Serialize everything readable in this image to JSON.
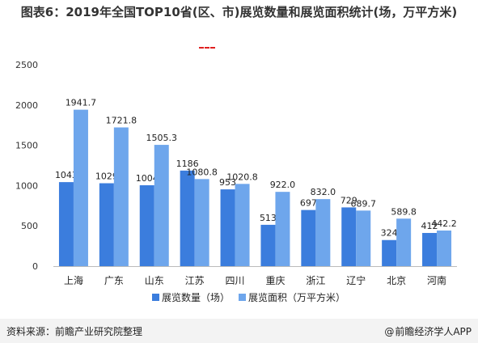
{
  "page": {
    "title": "图表6：2019年全国TOP10省(区、市)展览数量和展览面积统计(场，万平方米)",
    "source": "资料来源：前瞻产业研究院整理",
    "brand": "前瞻经济学人APP",
    "brand_icon": "@"
  },
  "chart_data": {
    "type": "bar",
    "title": "图表6：2019年全国TOP10省(区、市)展览数量和展览面积统计(场，万平方米)",
    "categories": [
      "上海",
      "广东",
      "山东",
      "江苏",
      "四川",
      "重庆",
      "浙江",
      "辽宁",
      "北京",
      "河南"
    ],
    "series": [
      {
        "name": "展览数量（场）",
        "values": [
          1043,
          1029,
          1004,
          1186,
          953,
          513,
          697,
          729,
          324,
          412
        ],
        "labels": [
          "1043",
          "1029",
          "1004",
          "1186",
          "953",
          "513",
          "697",
          "729",
          "324",
          "412"
        ],
        "color": "#3b7ddd"
      },
      {
        "name": "展览面积（万平方米）",
        "values": [
          1941.7,
          1721.8,
          1505.3,
          1080.8,
          1020.8,
          922.0,
          832.0,
          689.7,
          589.8,
          442.2
        ],
        "labels": [
          "1941.7",
          "1721.8",
          "1505.3",
          "1080.8",
          "1020.8",
          "922.0",
          "832.0",
          "689.7",
          "589.8",
          "442.2"
        ],
        "color": "#6ea6ec"
      }
    ],
    "ylim": [
      0,
      2500
    ],
    "yticks": [
      "0",
      "500",
      "1000",
      "1500",
      "2000",
      "2500"
    ],
    "grid": false,
    "legend": "bottom"
  }
}
